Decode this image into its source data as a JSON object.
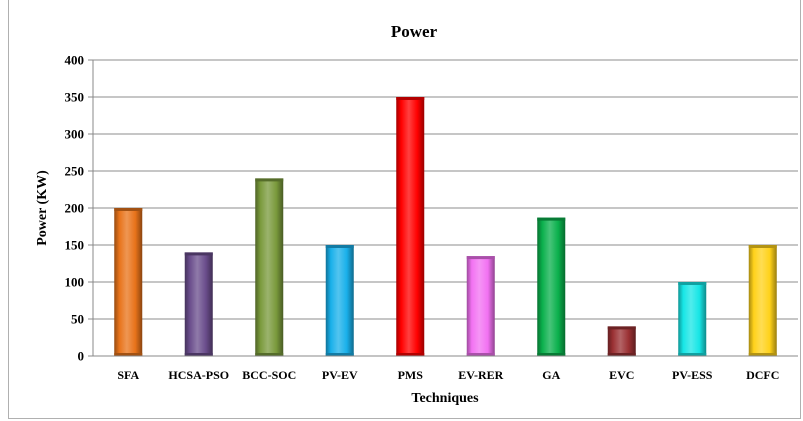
{
  "chart_data": {
    "type": "bar",
    "title": "Power",
    "xlabel": "Techniques",
    "ylabel": "Power (KW)",
    "ylim": [
      0,
      400
    ],
    "yticks": [
      0,
      50,
      100,
      150,
      200,
      250,
      300,
      350,
      400
    ],
    "grid": true,
    "categories": [
      "SFA",
      "HCSA-PSO",
      "BCC-SOC",
      "PV-EV",
      "PMS",
      "EV-RER",
      "GA",
      "EVC",
      "PV-ESS",
      "DCFC"
    ],
    "values": [
      200,
      140,
      240,
      150,
      350,
      135,
      187,
      40,
      100,
      150
    ],
    "colors": [
      "#e8731a",
      "#6a4d8c",
      "#7a9a3c",
      "#19b0ea",
      "#ff0000",
      "#f272f2",
      "#0ab04c",
      "#9a3033",
      "#17e6e6",
      "#ffd21a"
    ]
  }
}
